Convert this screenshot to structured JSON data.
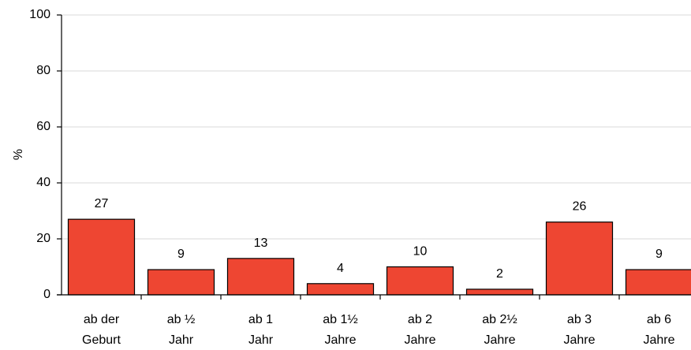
{
  "chart_data": {
    "type": "bar",
    "categories": [
      [
        "ab der",
        "Geburt"
      ],
      [
        "ab ½",
        "Jahr"
      ],
      [
        "ab 1",
        "Jahr"
      ],
      [
        "ab 1½",
        "Jahre"
      ],
      [
        "ab 2",
        "Jahre"
      ],
      [
        "ab 2½",
        "Jahre"
      ],
      [
        "ab 3",
        "Jahre"
      ],
      [
        "ab 6",
        "Jahre"
      ]
    ],
    "values": [
      27,
      9,
      13,
      4,
      10,
      2,
      26,
      9
    ],
    "data_labels": [
      "27",
      "9",
      "13",
      "4",
      "10",
      "2",
      "26",
      "9"
    ],
    "ylabel": "%",
    "ylim": [
      0,
      100
    ],
    "yticks": [
      0,
      20,
      40,
      60,
      80,
      100
    ],
    "grid": true,
    "bar_color": "#ee4632",
    "bar_stroke": "#000000",
    "grid_color": "#d9d9d9"
  }
}
